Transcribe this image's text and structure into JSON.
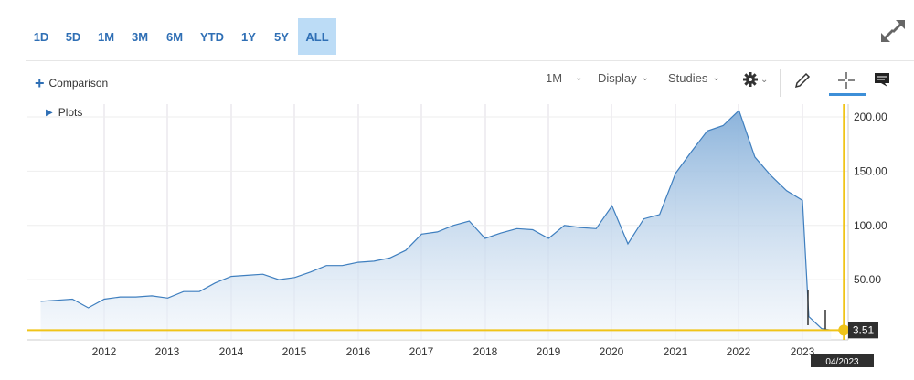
{
  "ranges": {
    "items": [
      "1D",
      "5D",
      "1M",
      "3M",
      "6M",
      "YTD",
      "1Y",
      "5Y",
      "ALL"
    ],
    "active_index": 8
  },
  "toolbar": {
    "comparison_label": "Comparison",
    "interval_label": "1M",
    "display_label": "Display",
    "studies_label": "Studies"
  },
  "plots_label": "Plots",
  "colors": {
    "line": "#3f7fbf",
    "area_top": "#8bb3db",
    "area_bottom": "#f2f6fb",
    "crosshair": "#f0c419",
    "accent": "#2f6fb5",
    "active_tab": "#bcdcf6"
  },
  "icons": [
    "expand-icon",
    "gear-icon",
    "pencil-icon",
    "crosshair-icon",
    "comment-icon"
  ],
  "chart_data": {
    "type": "area",
    "x_tick_labels": [
      "2012",
      "2013",
      "2014",
      "2015",
      "2016",
      "2017",
      "2018",
      "2019",
      "2020",
      "2021",
      "2022",
      "2023"
    ],
    "y_tick_labels": [
      "50.00",
      "100.00",
      "150.00",
      "200.00"
    ],
    "ylim": [
      0,
      215
    ],
    "x": [
      2011.0,
      2011.25,
      2011.5,
      2011.75,
      2012.0,
      2012.25,
      2012.5,
      2012.75,
      2013.0,
      2013.25,
      2013.5,
      2013.75,
      2014.0,
      2014.25,
      2014.5,
      2014.75,
      2015.0,
      2015.25,
      2015.5,
      2015.75,
      2016.0,
      2016.25,
      2016.5,
      2016.75,
      2017.0,
      2017.25,
      2017.5,
      2017.75,
      2018.0,
      2018.25,
      2018.5,
      2018.75,
      2019.0,
      2019.25,
      2019.5,
      2019.75,
      2020.0,
      2020.25,
      2020.5,
      2020.75,
      2021.0,
      2021.25,
      2021.5,
      2021.75,
      2022.0,
      2022.25,
      2022.5,
      2022.75,
      2023.0,
      2023.1,
      2023.3,
      2023.45
    ],
    "values": [
      30,
      31,
      32,
      24,
      32,
      34,
      34,
      35,
      33,
      39,
      39,
      47,
      53,
      54,
      55,
      50,
      52,
      57,
      63,
      63,
      66,
      67,
      70,
      77,
      92,
      94,
      100,
      104,
      88,
      93,
      97,
      96,
      88,
      100,
      98,
      97,
      118,
      83,
      106,
      110,
      148,
      168,
      187,
      192,
      206,
      163,
      146,
      132,
      123,
      16,
      5,
      3.51
    ],
    "last_value_label": "3.51",
    "crosshair_date_label": "04/2023",
    "grid": true
  }
}
